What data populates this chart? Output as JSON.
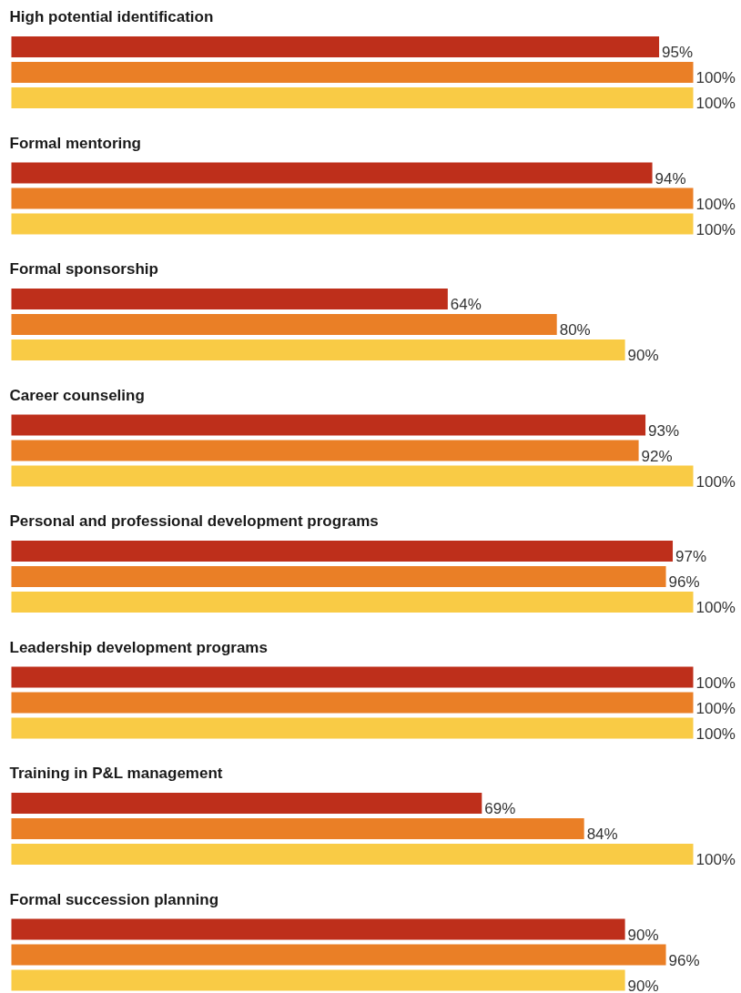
{
  "chart_data": {
    "type": "bar",
    "orientation": "horizontal",
    "categories": [
      "High potential identification",
      "Formal mentoring",
      "Formal sponsorship",
      "Career counseling",
      "Personal and professional development programs",
      "Leadership development programs",
      "Training in P&L management",
      "Formal succession planning"
    ],
    "series": [
      {
        "color": "#be2f1b",
        "values": [
          95,
          94,
          64,
          93,
          97,
          100,
          69,
          90
        ],
        "value_labels": [
          "95%",
          "94%",
          "64%",
          "93%",
          "97%",
          "100%",
          "69%",
          "90%"
        ]
      },
      {
        "color": "#ea7f26",
        "values": [
          100,
          100,
          80,
          92,
          96,
          100,
          84,
          96
        ],
        "value_labels": [
          "100%",
          "100%",
          "80%",
          "92%",
          "96%",
          "100%",
          "84%",
          "96%"
        ]
      },
      {
        "color": "#f9cb45",
        "values": [
          100,
          100,
          90,
          100,
          100,
          100,
          100,
          90
        ],
        "value_labels": [
          "100%",
          "100%",
          "90%",
          "100%",
          "100%",
          "100%",
          "100%",
          "90%"
        ]
      }
    ],
    "grid": false
  }
}
